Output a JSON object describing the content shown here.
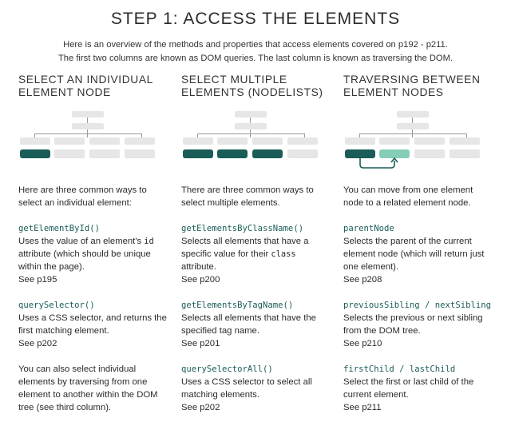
{
  "title": "STEP 1: ACCESS THE ELEMENTS",
  "intro": {
    "line1": "Here is an overview of the methods and properties that access elements covered on p192 - p211.",
    "line2": "The first two columns are known as DOM queries. The last column is known as traversing the DOM."
  },
  "colors": {
    "accent": "#1a5d58",
    "accent_light": "#86cdb9",
    "box": "#e6e6e6"
  },
  "columns": [
    {
      "heading_line1": "SELECT AN INDIVIDUAL",
      "heading_line2": "ELEMENT NODE",
      "intro": "Here are three common ways to select an individual element:",
      "entries": [
        {
          "code": "getElementById()",
          "desc_a": "Uses the value of an element's ",
          "desc_code": "id",
          "desc_b": " attribute (which should be unique within the page).",
          "see": "See p195"
        },
        {
          "code": "querySelector()",
          "desc_a": "Uses a CSS selector, and returns the first matching element.",
          "desc_code": "",
          "desc_b": "",
          "see": "See p202"
        }
      ],
      "footer": "You can also select individual elements by traversing from one element to another within the DOM tree (see third column)."
    },
    {
      "heading_line1": "SELECT MULTIPLE",
      "heading_line2": "ELEMENTS (NODELISTS)",
      "intro": "There are three common ways to select multiple elements.",
      "entries": [
        {
          "code": "getElementsByClassName()",
          "desc_a": "Selects all elements that have a specific value for their ",
          "desc_code": "class",
          "desc_b": " attribute.",
          "see": "See p200"
        },
        {
          "code": "getElementsByTagName()",
          "desc_a": "Selects all elements that have the specified tag name.",
          "desc_code": "",
          "desc_b": "",
          "see": "See p201"
        },
        {
          "code": "querySelectorAll()",
          "desc_a": "Uses a CSS selector to select all matching elements.",
          "desc_code": "",
          "desc_b": "",
          "see": "See p202"
        }
      ]
    },
    {
      "heading_line1": "TRAVERSING BETWEEN",
      "heading_line2": "ELEMENT NODES",
      "intro": "You can move from one element node to a related element node.",
      "entries": [
        {
          "code": "parentNode",
          "desc_a": "Selects the parent of the current element node (which will return just one element).",
          "desc_code": "",
          "desc_b": "",
          "see": "See p208"
        },
        {
          "code": "previousSibling / nextSibling",
          "desc_a": "Selects the previous or next sibling from the DOM tree.",
          "desc_code": "",
          "desc_b": "",
          "see": "See p210"
        },
        {
          "code": "firstChild / lastChild",
          "desc_a": "Select the first or last child of the current element.",
          "desc_code": "",
          "desc_b": "",
          "see": "See p211"
        }
      ]
    }
  ]
}
